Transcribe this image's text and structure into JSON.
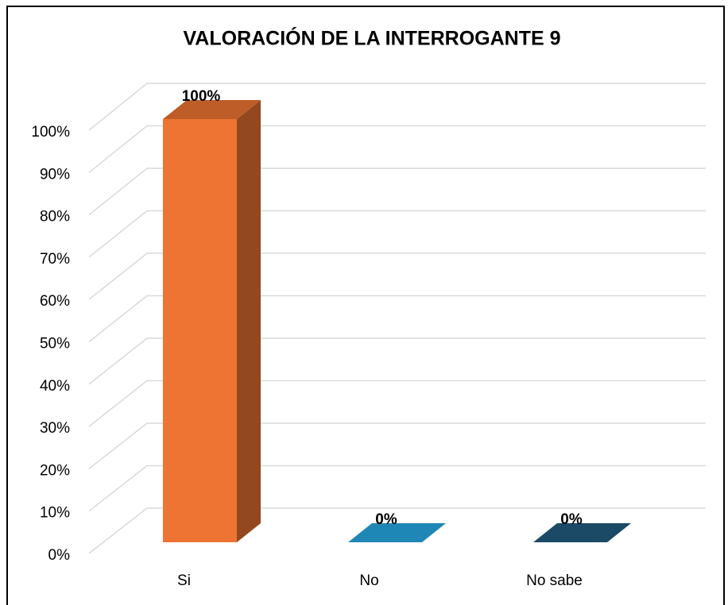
{
  "chart_data": {
    "type": "bar3d",
    "title": "VALORACIÓN DE LA INTERROGANTE 9",
    "categories": [
      "Si",
      "No",
      "No sabe"
    ],
    "values": [
      100,
      0,
      0
    ],
    "value_labels": [
      "100%",
      "0%",
      "0%"
    ],
    "colors": [
      "#ed7432",
      "#1f87b5",
      "#1b4a66"
    ],
    "ylim": [
      0,
      100
    ],
    "yticks": [
      {
        "value": 0,
        "label": "0%"
      },
      {
        "value": 10,
        "label": "10%"
      },
      {
        "value": 20,
        "label": "20%"
      },
      {
        "value": 30,
        "label": "30%"
      },
      {
        "value": 40,
        "label": "40%"
      },
      {
        "value": 50,
        "label": "50%"
      },
      {
        "value": 60,
        "label": "60%"
      },
      {
        "value": 70,
        "label": "70%"
      },
      {
        "value": 80,
        "label": "80%"
      },
      {
        "value": 90,
        "label": "90%"
      },
      {
        "value": 100,
        "label": "100%"
      }
    ],
    "grid": true
  }
}
